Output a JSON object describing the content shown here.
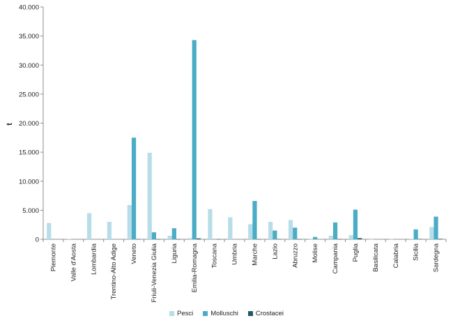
{
  "chart_data": {
    "type": "bar",
    "title": "",
    "xlabel": "",
    "ylabel": "t",
    "ylim": [
      0,
      40000
    ],
    "yticks": [
      "0",
      "5.000",
      "10.000",
      "15.000",
      "20.000",
      "25.000",
      "30.000",
      "35.000",
      "40.000"
    ],
    "categories": [
      "Piemonte",
      "Valle d'Aosta",
      "Lombardia",
      "Trentino-Alto Adige",
      "Veneto",
      "Friuli-Venezia Giulia",
      "Liguria",
      "Emilia-Romagna",
      "Toscana",
      "Umbria",
      "Marche",
      "Lazio",
      "Abruzzo",
      "Molise",
      "Campania",
      "Puglia",
      "Basilicata",
      "Calabria",
      "Sicilia",
      "Sardegna"
    ],
    "series": [
      {
        "name": "Pesci",
        "color": "#b7dde8",
        "values": [
          2800,
          60,
          4500,
          3000,
          5900,
          14900,
          600,
          200,
          5200,
          3800,
          2600,
          3000,
          3300,
          30,
          600,
          700,
          10,
          40,
          80,
          2100
        ]
      },
      {
        "name": "Molluschi",
        "color": "#4bacc6",
        "values": [
          0,
          0,
          0,
          0,
          17500,
          1200,
          1900,
          34300,
          0,
          0,
          6600,
          1500,
          2000,
          400,
          2900,
          5100,
          0,
          0,
          1700,
          3900
        ]
      },
      {
        "name": "Crostacei",
        "color": "#215968",
        "values": [
          0,
          0,
          0,
          0,
          30,
          20,
          20,
          150,
          20,
          0,
          20,
          30,
          20,
          0,
          20,
          200,
          0,
          0,
          50,
          80
        ]
      }
    ],
    "legend": "bottom",
    "grid": false
  }
}
